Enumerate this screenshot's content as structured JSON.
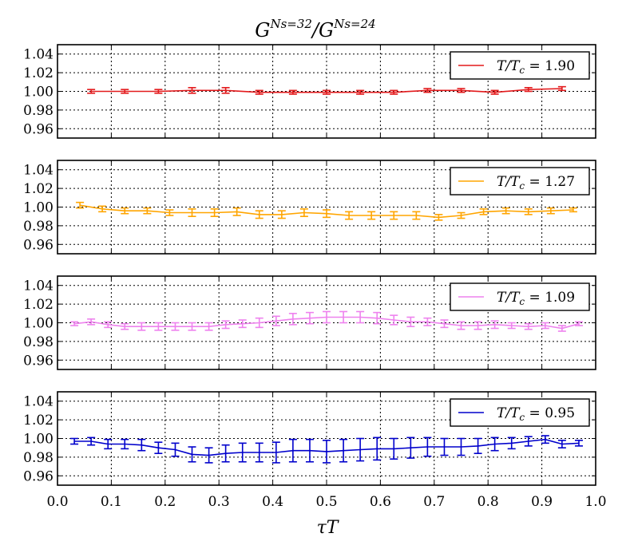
{
  "chart_data": {
    "type": "line",
    "title_parts": {
      "base1": "G",
      "sup1": "Ns=32",
      "sep": "/",
      "base2": "G",
      "sup2": "Ns=24"
    },
    "xlabel": "τT",
    "xlim": [
      0.0,
      1.0
    ],
    "ylim": [
      0.95,
      1.05
    ],
    "xticks": [
      "0.0",
      "0.1",
      "0.2",
      "0.3",
      "0.4",
      "0.5",
      "0.6",
      "0.7",
      "0.8",
      "0.9",
      "1.0"
    ],
    "yticks": [
      "0.96",
      "0.98",
      "1.00",
      "1.02",
      "1.04"
    ],
    "grid": true,
    "legend_position": "top-right",
    "panels": [
      {
        "name": "T/Tc = 1.90",
        "legend_label": "T/T",
        "legend_sub": "c",
        "legend_value": " = 1.90",
        "color": "#e31a1c",
        "x": [
          0.0625,
          0.125,
          0.1875,
          0.25,
          0.3125,
          0.375,
          0.4375,
          0.5,
          0.5625,
          0.625,
          0.6875,
          0.75,
          0.8125,
          0.875,
          0.9375
        ],
        "y": [
          1.0,
          1.0,
          1.0,
          1.001,
          1.001,
          0.999,
          0.999,
          0.999,
          0.999,
          0.999,
          1.001,
          1.001,
          0.999,
          1.002,
          1.003
        ],
        "err": [
          0.002,
          0.002,
          0.002,
          0.003,
          0.003,
          0.002,
          0.002,
          0.002,
          0.002,
          0.002,
          0.002,
          0.002,
          0.002,
          0.002,
          0.002
        ]
      },
      {
        "name": "T/Tc = 1.27",
        "legend_label": "T/T",
        "legend_sub": "c",
        "legend_value": " = 1.27",
        "color": "#ffa500",
        "x": [
          0.0417,
          0.0833,
          0.125,
          0.1667,
          0.2083,
          0.25,
          0.2917,
          0.3333,
          0.375,
          0.4167,
          0.4583,
          0.5,
          0.5417,
          0.5833,
          0.625,
          0.6667,
          0.7083,
          0.75,
          0.7917,
          0.8333,
          0.875,
          0.9167,
          0.9583
        ],
        "y": [
          1.002,
          0.998,
          0.996,
          0.996,
          0.994,
          0.994,
          0.994,
          0.995,
          0.992,
          0.992,
          0.994,
          0.993,
          0.991,
          0.991,
          0.991,
          0.991,
          0.989,
          0.991,
          0.995,
          0.996,
          0.995,
          0.996,
          0.997
        ],
        "err": [
          0.003,
          0.003,
          0.003,
          0.003,
          0.003,
          0.004,
          0.004,
          0.004,
          0.004,
          0.004,
          0.004,
          0.004,
          0.004,
          0.004,
          0.004,
          0.004,
          0.003,
          0.003,
          0.003,
          0.003,
          0.003,
          0.003,
          0.002
        ]
      },
      {
        "name": "T/Tc = 1.09",
        "legend_label": "T/T",
        "legend_sub": "c",
        "legend_value": " = 1.09",
        "color": "#ee82ee",
        "x": [
          0.0313,
          0.0625,
          0.0938,
          0.125,
          0.1563,
          0.1875,
          0.2188,
          0.25,
          0.2813,
          0.3125,
          0.3438,
          0.375,
          0.4063,
          0.4375,
          0.4688,
          0.5,
          0.5313,
          0.5625,
          0.5938,
          0.625,
          0.6563,
          0.6875,
          0.7188,
          0.75,
          0.7813,
          0.8125,
          0.8438,
          0.875,
          0.9063,
          0.9375,
          0.9688
        ],
        "y": [
          0.999,
          1.001,
          0.998,
          0.996,
          0.996,
          0.996,
          0.996,
          0.996,
          0.996,
          0.998,
          0.999,
          1.0,
          1.002,
          1.004,
          1.005,
          1.006,
          1.006,
          1.006,
          1.005,
          1.003,
          1.001,
          1.001,
          0.999,
          0.997,
          0.997,
          0.998,
          0.997,
          0.996,
          0.997,
          0.994,
          0.999
        ],
        "err": [
          0.002,
          0.003,
          0.003,
          0.003,
          0.004,
          0.004,
          0.004,
          0.004,
          0.004,
          0.004,
          0.004,
          0.005,
          0.005,
          0.006,
          0.006,
          0.006,
          0.006,
          0.006,
          0.006,
          0.005,
          0.005,
          0.004,
          0.004,
          0.004,
          0.004,
          0.004,
          0.003,
          0.003,
          0.003,
          0.003,
          0.002
        ]
      },
      {
        "name": "T/Tc = 0.95",
        "legend_label": "T/T",
        "legend_sub": "c",
        "legend_value": " = 0.95",
        "color": "#0000cc",
        "x": [
          0.0313,
          0.0625,
          0.0938,
          0.125,
          0.1563,
          0.1875,
          0.2188,
          0.25,
          0.2813,
          0.3125,
          0.3438,
          0.375,
          0.4063,
          0.4375,
          0.4688,
          0.5,
          0.5313,
          0.5625,
          0.5938,
          0.625,
          0.6563,
          0.6875,
          0.7188,
          0.75,
          0.7813,
          0.8125,
          0.8438,
          0.875,
          0.9063,
          0.9375,
          0.9688
        ],
        "y": [
          0.997,
          0.997,
          0.994,
          0.994,
          0.993,
          0.99,
          0.988,
          0.983,
          0.982,
          0.984,
          0.985,
          0.985,
          0.985,
          0.987,
          0.987,
          0.986,
          0.987,
          0.988,
          0.989,
          0.989,
          0.99,
          0.991,
          0.991,
          0.991,
          0.992,
          0.994,
          0.995,
          0.997,
          0.999,
          0.994,
          0.995
        ],
        "err": [
          0.003,
          0.004,
          0.005,
          0.005,
          0.006,
          0.006,
          0.007,
          0.008,
          0.008,
          0.009,
          0.01,
          0.01,
          0.011,
          0.012,
          0.012,
          0.012,
          0.012,
          0.012,
          0.012,
          0.011,
          0.011,
          0.01,
          0.009,
          0.009,
          0.008,
          0.007,
          0.006,
          0.005,
          0.004,
          0.004,
          0.003
        ]
      }
    ]
  }
}
